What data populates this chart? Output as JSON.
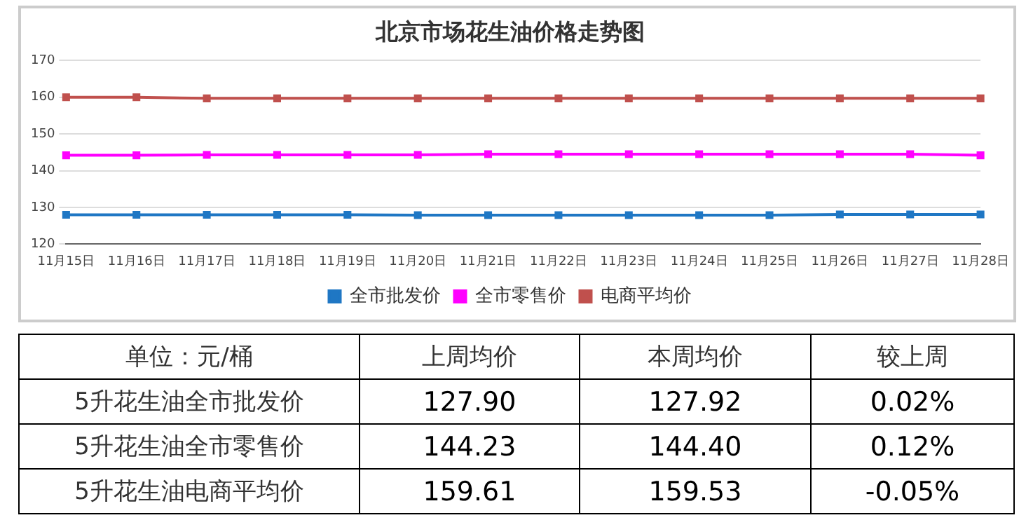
{
  "chart_data": [
    {
      "type": "line",
      "title": "北京市场花生油价格走势图",
      "categories": [
        "11月15日",
        "11月16日",
        "11月17日",
        "11月18日",
        "11月19日",
        "11月20日",
        "11月21日",
        "11月22日",
        "11月23日",
        "11月24日",
        "11月25日",
        "11月26日",
        "11月27日",
        "11月28日"
      ],
      "series": [
        {
          "name": "全市批发价",
          "color": "#1f77c4",
          "values": [
            128,
            128,
            128,
            128,
            128,
            127.9,
            127.9,
            127.9,
            127.9,
            127.9,
            127.9,
            128.1,
            128.1,
            128.1
          ]
        },
        {
          "name": "全市零售价",
          "color": "#ff00ff",
          "values": [
            144.2,
            144.2,
            144.3,
            144.3,
            144.3,
            144.3,
            144.5,
            144.5,
            144.5,
            144.5,
            144.5,
            144.5,
            144.5,
            144.2
          ]
        },
        {
          "name": "电商平均价",
          "color": "#c0504d",
          "values": [
            160,
            160,
            159.7,
            159.7,
            159.7,
            159.7,
            159.7,
            159.7,
            159.7,
            159.7,
            159.7,
            159.7,
            159.7,
            159.7
          ]
        }
      ],
      "ylim": [
        120,
        170
      ],
      "yticks": [
        120,
        130,
        140,
        150,
        160,
        170
      ],
      "grid": "y",
      "legend": "bottom",
      "marker": "square",
      "line_style": "solid"
    },
    {
      "type": "other",
      "annotations": [
        "单位：元/桶",
        "上周均价",
        "本周均价",
        "较上周",
        "5升花生油全市批发价",
        "127.90",
        "127.92",
        "0.02%",
        "5升花生油全市零售价",
        "144.23",
        "144.40",
        "0.12%",
        "5升花生油电商平均价",
        "159.61",
        "159.53",
        "-0.05%"
      ]
    }
  ]
}
